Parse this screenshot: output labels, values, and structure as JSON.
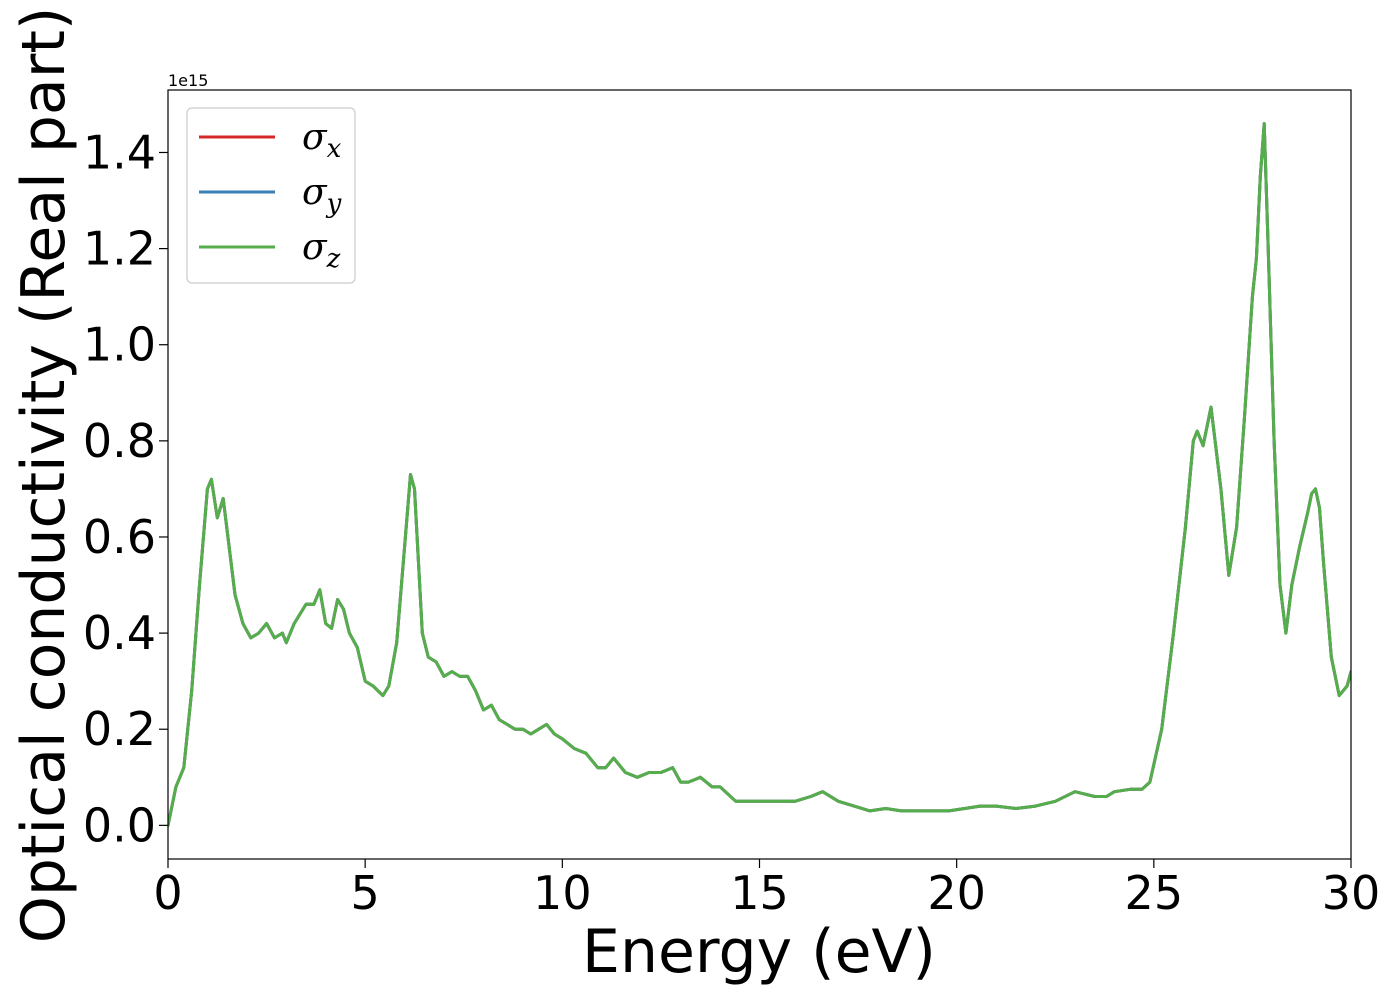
{
  "chart_data": {
    "type": "line",
    "title": "",
    "xlabel": "Energy (eV)",
    "ylabel": "Optical conductivity (Real part)",
    "y_offset_label": "1e15",
    "xlim": [
      0,
      30
    ],
    "ylim": [
      -0.07,
      1.53
    ],
    "x_ticks": [
      0,
      5,
      10,
      15,
      20,
      25,
      30
    ],
    "x_tick_labels": [
      "0",
      "5",
      "10",
      "15",
      "20",
      "25",
      "30"
    ],
    "y_ticks": [
      0.0,
      0.2,
      0.4,
      0.6,
      0.8,
      1.0,
      1.2,
      1.4
    ],
    "y_tick_labels": [
      "0.0",
      "0.2",
      "0.4",
      "0.6",
      "0.8",
      "1.0",
      "1.2",
      "1.4"
    ],
    "grid": false,
    "legend_position": "top-left",
    "legend": [
      {
        "symbol": "σ",
        "sub": "x",
        "color": "#d62728"
      },
      {
        "symbol": "σ",
        "sub": "y",
        "color": "#3a7fb5"
      },
      {
        "symbol": "σ",
        "sub": "z",
        "color": "#55ae4b"
      }
    ],
    "x": [
      0,
      0.2,
      0.4,
      0.6,
      0.8,
      1.0,
      1.1,
      1.25,
      1.4,
      1.55,
      1.7,
      1.9,
      2.1,
      2.3,
      2.5,
      2.7,
      2.9,
      3.0,
      3.2,
      3.5,
      3.7,
      3.85,
      4.0,
      4.15,
      4.3,
      4.45,
      4.6,
      4.8,
      5.0,
      5.2,
      5.45,
      5.6,
      5.8,
      6.0,
      6.15,
      6.25,
      6.35,
      6.45,
      6.6,
      6.8,
      7.0,
      7.2,
      7.4,
      7.6,
      7.8,
      8.0,
      8.2,
      8.4,
      8.6,
      8.8,
      9.0,
      9.2,
      9.4,
      9.6,
      9.8,
      10.0,
      10.3,
      10.6,
      10.9,
      11.1,
      11.3,
      11.6,
      11.9,
      12.2,
      12.5,
      12.8,
      13.0,
      13.2,
      13.5,
      13.8,
      14.0,
      14.4,
      14.8,
      15.2,
      15.6,
      15.9,
      16.3,
      16.6,
      17.0,
      17.4,
      17.8,
      18.2,
      18.6,
      19.0,
      19.4,
      19.8,
      20.2,
      20.6,
      21.0,
      21.5,
      22.0,
      22.5,
      23.0,
      23.5,
      23.8,
      24.0,
      24.4,
      24.7,
      24.9,
      25.2,
      25.5,
      25.8,
      26.0,
      26.1,
      26.25,
      26.45,
      26.7,
      26.9,
      27.1,
      27.3,
      27.5,
      27.6,
      27.7,
      27.8,
      27.9,
      28.05,
      28.2,
      28.35,
      28.5,
      28.7,
      28.9,
      29.0,
      29.1,
      29.2,
      29.3,
      29.5,
      29.7,
      29.9,
      30.0
    ],
    "series": [
      {
        "name": "",
        "color": "#d62728",
        "values": [
          0.0,
          0.08,
          0.12,
          0.28,
          0.5,
          0.7,
          0.72,
          0.64,
          0.68,
          0.58,
          0.48,
          0.42,
          0.39,
          0.4,
          0.42,
          0.39,
          0.4,
          0.38,
          0.42,
          0.46,
          0.46,
          0.49,
          0.42,
          0.41,
          0.47,
          0.45,
          0.4,
          0.37,
          0.3,
          0.29,
          0.27,
          0.29,
          0.38,
          0.58,
          0.73,
          0.7,
          0.55,
          0.4,
          0.35,
          0.34,
          0.31,
          0.32,
          0.31,
          0.31,
          0.28,
          0.24,
          0.25,
          0.22,
          0.21,
          0.2,
          0.2,
          0.19,
          0.2,
          0.21,
          0.19,
          0.18,
          0.16,
          0.15,
          0.12,
          0.12,
          0.14,
          0.11,
          0.1,
          0.11,
          0.11,
          0.12,
          0.09,
          0.09,
          0.1,
          0.08,
          0.08,
          0.05,
          0.05,
          0.05,
          0.05,
          0.05,
          0.06,
          0.07,
          0.05,
          0.04,
          0.03,
          0.035,
          0.03,
          0.03,
          0.03,
          0.03,
          0.035,
          0.04,
          0.04,
          0.035,
          0.04,
          0.05,
          0.07,
          0.06,
          0.06,
          0.07,
          0.075,
          0.075,
          0.09,
          0.2,
          0.4,
          0.62,
          0.8,
          0.82,
          0.79,
          0.87,
          0.7,
          0.52,
          0.62,
          0.85,
          1.1,
          1.18,
          1.35,
          1.46,
          1.2,
          0.8,
          0.5,
          0.4,
          0.5,
          0.58,
          0.65,
          0.69,
          0.7,
          0.66,
          0.55,
          0.35,
          0.27,
          0.29,
          0.32
        ]
      },
      {
        "name": "",
        "color": "#3a7fb5",
        "values": [
          0.0,
          0.08,
          0.12,
          0.28,
          0.5,
          0.7,
          0.72,
          0.64,
          0.68,
          0.58,
          0.48,
          0.42,
          0.39,
          0.4,
          0.42,
          0.39,
          0.4,
          0.38,
          0.42,
          0.46,
          0.46,
          0.49,
          0.42,
          0.41,
          0.47,
          0.45,
          0.4,
          0.37,
          0.3,
          0.29,
          0.27,
          0.29,
          0.38,
          0.58,
          0.73,
          0.7,
          0.55,
          0.4,
          0.35,
          0.34,
          0.31,
          0.32,
          0.31,
          0.31,
          0.28,
          0.24,
          0.25,
          0.22,
          0.21,
          0.2,
          0.2,
          0.19,
          0.2,
          0.21,
          0.19,
          0.18,
          0.16,
          0.15,
          0.12,
          0.12,
          0.14,
          0.11,
          0.1,
          0.11,
          0.11,
          0.12,
          0.09,
          0.09,
          0.1,
          0.08,
          0.08,
          0.05,
          0.05,
          0.05,
          0.05,
          0.05,
          0.06,
          0.07,
          0.05,
          0.04,
          0.03,
          0.035,
          0.03,
          0.03,
          0.03,
          0.03,
          0.035,
          0.04,
          0.04,
          0.035,
          0.04,
          0.05,
          0.07,
          0.06,
          0.06,
          0.07,
          0.075,
          0.075,
          0.09,
          0.2,
          0.4,
          0.62,
          0.8,
          0.82,
          0.79,
          0.87,
          0.7,
          0.52,
          0.62,
          0.85,
          1.1,
          1.18,
          1.35,
          1.46,
          1.2,
          0.8,
          0.5,
          0.4,
          0.5,
          0.58,
          0.65,
          0.69,
          0.7,
          0.66,
          0.55,
          0.35,
          0.27,
          0.29,
          0.32
        ]
      },
      {
        "name": "",
        "color": "#55ae4b",
        "values": [
          0.0,
          0.08,
          0.12,
          0.28,
          0.5,
          0.7,
          0.72,
          0.64,
          0.68,
          0.58,
          0.48,
          0.42,
          0.39,
          0.4,
          0.42,
          0.39,
          0.4,
          0.38,
          0.42,
          0.46,
          0.46,
          0.49,
          0.42,
          0.41,
          0.47,
          0.45,
          0.4,
          0.37,
          0.3,
          0.29,
          0.27,
          0.29,
          0.38,
          0.58,
          0.73,
          0.7,
          0.55,
          0.4,
          0.35,
          0.34,
          0.31,
          0.32,
          0.31,
          0.31,
          0.28,
          0.24,
          0.25,
          0.22,
          0.21,
          0.2,
          0.2,
          0.19,
          0.2,
          0.21,
          0.19,
          0.18,
          0.16,
          0.15,
          0.12,
          0.12,
          0.14,
          0.11,
          0.1,
          0.11,
          0.11,
          0.12,
          0.09,
          0.09,
          0.1,
          0.08,
          0.08,
          0.05,
          0.05,
          0.05,
          0.05,
          0.05,
          0.06,
          0.07,
          0.05,
          0.04,
          0.03,
          0.035,
          0.03,
          0.03,
          0.03,
          0.03,
          0.035,
          0.04,
          0.04,
          0.035,
          0.04,
          0.05,
          0.07,
          0.06,
          0.06,
          0.07,
          0.075,
          0.075,
          0.09,
          0.2,
          0.4,
          0.62,
          0.8,
          0.82,
          0.79,
          0.87,
          0.7,
          0.52,
          0.62,
          0.85,
          1.1,
          1.18,
          1.35,
          1.46,
          1.2,
          0.8,
          0.5,
          0.4,
          0.5,
          0.58,
          0.65,
          0.69,
          0.7,
          0.66,
          0.55,
          0.35,
          0.27,
          0.29,
          0.32
        ]
      }
    ]
  }
}
